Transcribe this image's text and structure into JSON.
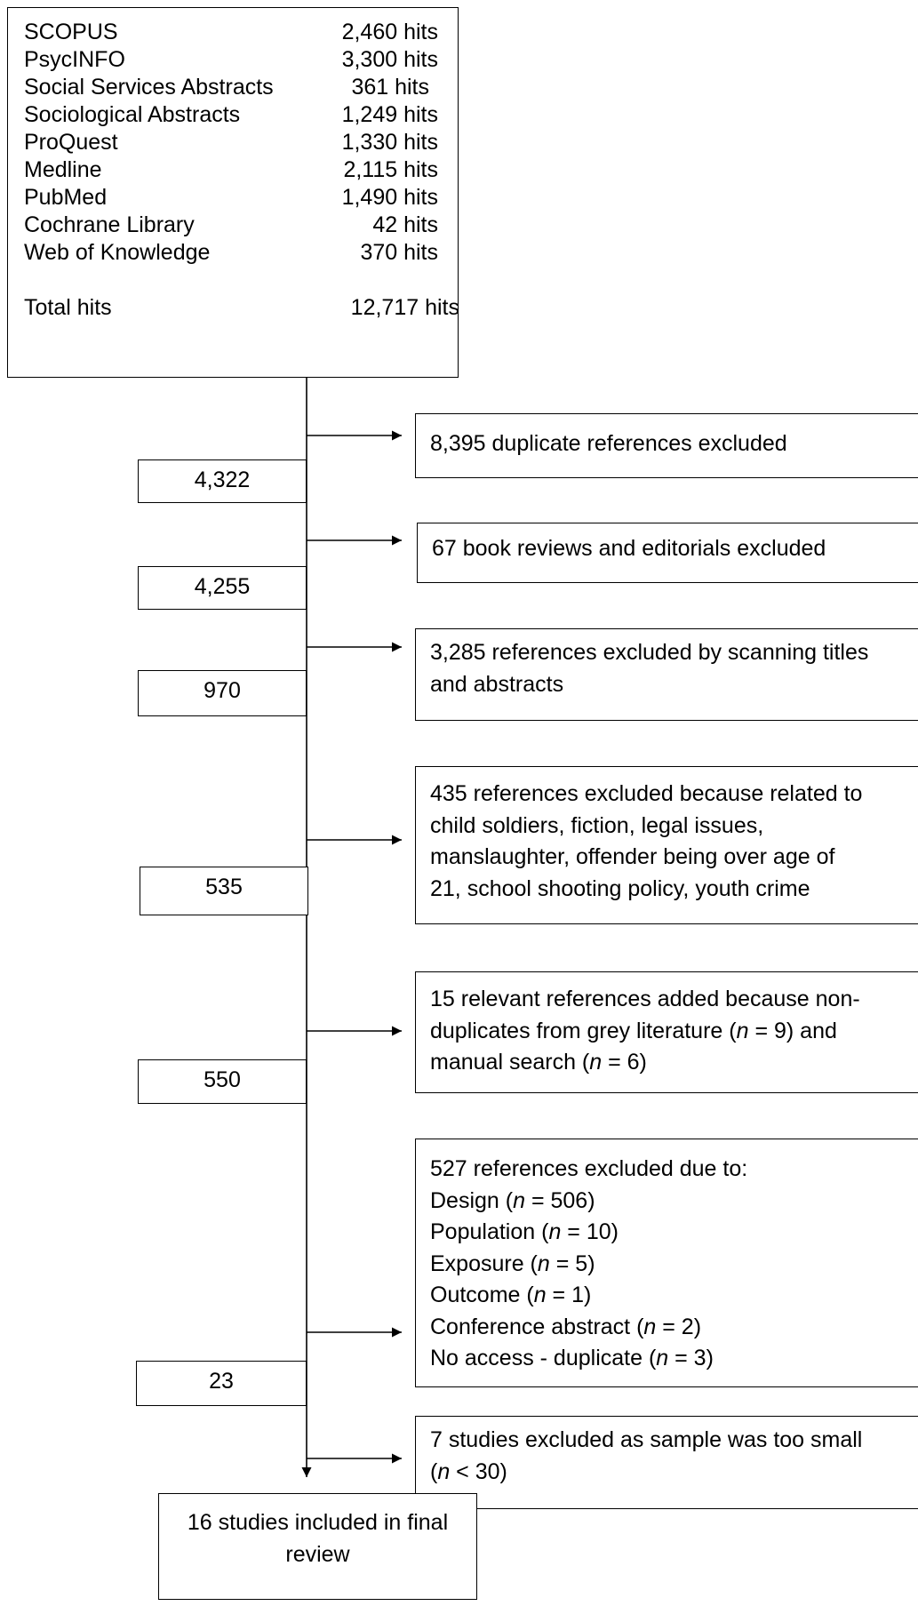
{
  "sources": {
    "items": [
      {
        "name": "SCOPUS",
        "hits": "2,460 hits"
      },
      {
        "name": "PsycINFO",
        "hits": "3,300 hits"
      },
      {
        "name": "Social Services Abstracts",
        "hits": "361 hits"
      },
      {
        "name": "Sociological Abstracts",
        "hits": "1,249 hits"
      },
      {
        "name": "ProQuest",
        "hits": "1,330 hits"
      },
      {
        "name": "Medline",
        "hits": "2,115 hits"
      },
      {
        "name": "PubMed",
        "hits": "1,490 hits"
      },
      {
        "name": "Cochrane Library",
        "hits": "42 hits"
      },
      {
        "name": "Web of Knowledge",
        "hits": "370 hits"
      }
    ],
    "total_label": "Total hits",
    "total_hits": "12,717 hits"
  },
  "counts": [
    "4,322",
    "4,255",
    "970",
    "535",
    "550",
    "23"
  ],
  "steps": {
    "s1": {
      "l1": "8,395 duplicate references excluded"
    },
    "s2": {
      "l1": "67 book reviews and editorials excluded"
    },
    "s3": {
      "l1": "3,285 references excluded by scanning titles",
      "l2": "and abstracts"
    },
    "s4": {
      "l1": "435 references excluded because related to",
      "l2": "child soldiers, fiction, legal issues,",
      "l3": "manslaughter, offender being over age of",
      "l4": "21, school shooting policy, youth crime"
    },
    "s5": {
      "l1": "15 relevant references added because non-",
      "l2a": "duplicates from grey literature (",
      "n": "n",
      "l2b": " = 9) and",
      "l3a": "manual search (",
      "l3b": " = 6)"
    },
    "s6": {
      "head": "527 references excluded due to:",
      "reasons": [
        {
          "pre": "Design (",
          "post": " = 506)"
        },
        {
          "pre": "Population (",
          "post": " = 10)"
        },
        {
          "pre": "Exposure (",
          "post": " = 5)"
        },
        {
          "pre": "Outcome (",
          "post": " = 1)"
        },
        {
          "pre": "Conference abstract (",
          "post": " = 2)"
        },
        {
          "pre": "No access - duplicate (",
          "post": " = 3)"
        }
      ]
    },
    "s7": {
      "l1": "7 studies excluded as sample was too small",
      "l2a": "(",
      "l2b": " < 30)"
    }
  },
  "final": {
    "l1": "16 studies included in final",
    "l2": "review"
  }
}
